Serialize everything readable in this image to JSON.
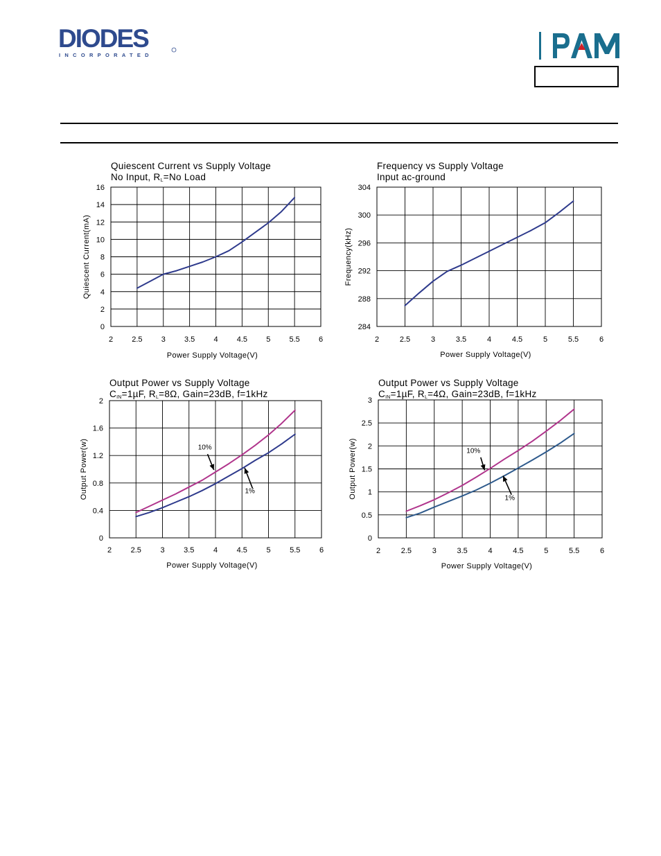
{
  "header": {
    "brand": "DIODES",
    "brand_sub": "INCORPORATED",
    "pam_logo": "PAM",
    "colors": {
      "diodes_blue": "#2e4a8e",
      "pam_teal": "#1a6e8e",
      "pam_red": "#d22027"
    }
  },
  "chart_data": [
    {
      "type": "line",
      "title": "Quiescent Current vs Supply Voltage",
      "subtitle": {
        "before": "No Input, R",
        "sub": "L",
        "after": "=No Load"
      },
      "xlabel": "Power Supply Voltage(V)",
      "ylabel": "Quiescent Current(mA)",
      "xlim": [
        2,
        6
      ],
      "ylim": [
        0,
        16
      ],
      "xticks": [
        "2",
        "2.5",
        "3",
        "3.5",
        "4",
        "4.5",
        "5",
        "5.5",
        "6"
      ],
      "yticks": [
        "0",
        "2",
        "4",
        "6",
        "8",
        "10",
        "12",
        "14",
        "16"
      ],
      "series": [
        {
          "color": "#2e3a8c",
          "x": [
            2.5,
            2.75,
            3.0,
            3.25,
            3.5,
            3.75,
            4.0,
            4.25,
            4.5,
            4.75,
            5.0,
            5.25,
            5.5
          ],
          "y": [
            4.4,
            5.2,
            6.0,
            6.4,
            6.9,
            7.4,
            8.0,
            8.7,
            9.7,
            10.8,
            11.9,
            13.2,
            14.8
          ]
        }
      ],
      "annotations": []
    },
    {
      "type": "line",
      "title": "Frequency vs Supply Voltage",
      "subtitle": {
        "before": "Input ac-ground",
        "sub": "",
        "after": ""
      },
      "xlabel": "Power Supply Voltage(V)",
      "ylabel": "Frequency(kHz)",
      "xlim": [
        2,
        6
      ],
      "ylim": [
        284,
        304
      ],
      "xticks": [
        "2",
        "2.5",
        "3",
        "3.5",
        "4",
        "4.5",
        "5",
        "5.5",
        "6"
      ],
      "yticks": [
        "284",
        "288",
        "292",
        "296",
        "300",
        "304"
      ],
      "series": [
        {
          "color": "#2e3a8c",
          "x": [
            2.5,
            2.75,
            3.0,
            3.25,
            3.5,
            3.75,
            4.0,
            4.25,
            4.5,
            4.75,
            5.0,
            5.25,
            5.5
          ],
          "y": [
            287.0,
            288.8,
            290.5,
            291.9,
            292.8,
            293.8,
            294.8,
            295.8,
            296.8,
            297.8,
            298.9,
            300.4,
            302.0
          ]
        }
      ],
      "annotations": []
    },
    {
      "type": "line",
      "title": "Output Power vs Supply Voltage",
      "subtitle": {
        "before": "C",
        "sub": "IN",
        "after": "=1µF, R",
        "sub2": "L",
        "after2": "=8Ω, Gain=23dB, f=1kHz"
      },
      "xlabel": "Power Supply Voltage(V)",
      "ylabel": "Output Power(w)",
      "xlim": [
        2,
        6
      ],
      "ylim": [
        0,
        2
      ],
      "xticks": [
        "2",
        "2.5",
        "3",
        "3.5",
        "4",
        "4.5",
        "5",
        "5.5",
        "6"
      ],
      "yticks": [
        "0",
        "0.4",
        "0.8",
        "1.2",
        "1.6",
        "2"
      ],
      "series": [
        {
          "name": "10%",
          "color": "#b0358c",
          "x": [
            2.5,
            2.75,
            3.0,
            3.25,
            3.5,
            3.75,
            4.0,
            4.25,
            4.5,
            4.75,
            5.0,
            5.25,
            5.5
          ],
          "y": [
            0.37,
            0.46,
            0.55,
            0.64,
            0.74,
            0.84,
            0.96,
            1.08,
            1.21,
            1.35,
            1.5,
            1.67,
            1.86
          ]
        },
        {
          "name": "1%",
          "color": "#2e3a8c",
          "x": [
            2.5,
            2.75,
            3.0,
            3.25,
            3.5,
            3.75,
            4.0,
            4.25,
            4.5,
            4.75,
            5.0,
            5.25,
            5.5
          ],
          "y": [
            0.31,
            0.37,
            0.44,
            0.52,
            0.6,
            0.69,
            0.79,
            0.9,
            1.01,
            1.13,
            1.24,
            1.37,
            1.51
          ]
        }
      ],
      "annotations": [
        {
          "text": "10%",
          "label_x": 3.8,
          "label_y": 1.29,
          "arrow_from": [
            3.85,
            1.22
          ],
          "arrow_to": [
            3.97,
            0.99
          ]
        },
        {
          "text": "1%",
          "label_x": 4.65,
          "label_y": 0.65,
          "arrow_from": [
            4.7,
            0.72
          ],
          "arrow_to": [
            4.55,
            1.02
          ]
        }
      ]
    },
    {
      "type": "line",
      "title": "Output Power vs Supply Voltage",
      "subtitle": {
        "before": "C",
        "sub": "IN",
        "after": "=1µF, R",
        "sub2": "L",
        "after2": "=4Ω, Gain=23dB, f=1kHz"
      },
      "xlabel": "Power Supply Voltage(V)",
      "ylabel": "Output Power(w)",
      "xlim": [
        2,
        6
      ],
      "ylim": [
        0,
        3
      ],
      "xticks": [
        "2",
        "2.5",
        "3",
        "3.5",
        "4",
        "4.5",
        "5",
        "5.5",
        "6"
      ],
      "yticks": [
        "0",
        "0.5",
        "1",
        "1.5",
        "2",
        "2.5",
        "3"
      ],
      "series": [
        {
          "name": "10%",
          "color": "#b0358c",
          "x": [
            2.5,
            2.75,
            3.0,
            3.25,
            3.5,
            3.75,
            4.0,
            4.25,
            4.5,
            4.75,
            5.0,
            5.25,
            5.5
          ],
          "y": [
            0.58,
            0.7,
            0.83,
            0.98,
            1.14,
            1.32,
            1.51,
            1.71,
            1.9,
            2.1,
            2.32,
            2.55,
            2.8
          ]
        },
        {
          "name": "1%",
          "color": "#2e5a8c",
          "x": [
            2.5,
            2.75,
            3.0,
            3.25,
            3.5,
            3.75,
            4.0,
            4.25,
            4.5,
            4.75,
            5.0,
            5.25,
            5.5
          ],
          "y": [
            0.44,
            0.54,
            0.67,
            0.79,
            0.91,
            1.04,
            1.19,
            1.35,
            1.52,
            1.69,
            1.87,
            2.06,
            2.27
          ]
        }
      ],
      "annotations": [
        {
          "text": "10%",
          "label_x": 3.7,
          "label_y": 1.85,
          "arrow_from": [
            3.83,
            1.75
          ],
          "arrow_to": [
            3.9,
            1.47
          ]
        },
        {
          "text": "1%",
          "label_x": 4.35,
          "label_y": 0.82,
          "arrow_from": [
            4.38,
            0.94
          ],
          "arrow_to": [
            4.23,
            1.35
          ]
        }
      ]
    }
  ]
}
